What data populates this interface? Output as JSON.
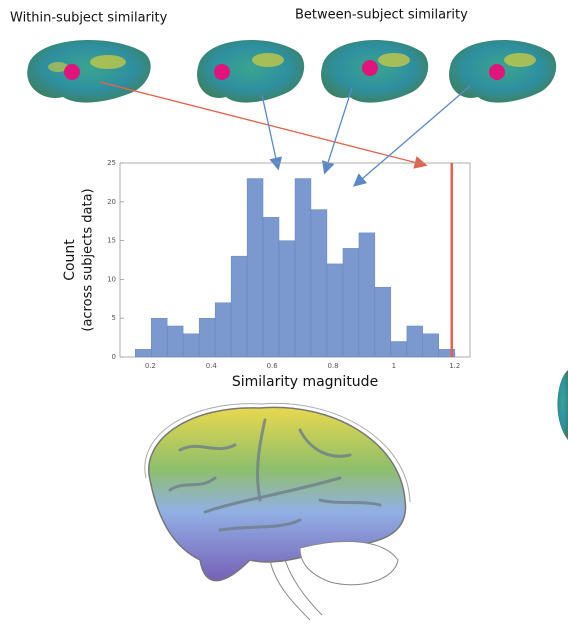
{
  "chart_data": {
    "type": "histogram",
    "annotations": [
      "Within-subject similarity",
      "Between-subject similarity"
    ],
    "xlabel": "Similarity magnitude",
    "ylabel": "Count",
    "ylabel2": "(across subjects data)",
    "bins": [
      0.15,
      0.2025,
      0.255,
      0.3075,
      0.36,
      0.4125,
      0.465,
      0.5175,
      0.57,
      0.6225,
      0.675,
      0.7275,
      0.78,
      0.8325,
      0.885,
      0.9375,
      0.99,
      1.0425,
      1.095,
      1.1475,
      1.2
    ],
    "values": [
      1,
      5,
      4,
      3,
      5,
      7,
      13,
      23,
      18,
      15,
      23,
      19,
      12,
      14,
      16,
      9,
      2,
      4,
      3,
      1
    ],
    "color": "#7b98cf",
    "reference_line": 1.19,
    "reference_color": "#e8604c",
    "xlim": [
      0.1,
      1.25
    ],
    "xticks": [
      0.2,
      0.4,
      0.6,
      0.8,
      1,
      1.2
    ],
    "ylim": [
      0,
      25
    ],
    "yticks": [
      0,
      5,
      10,
      15,
      20,
      25
    ]
  }
}
